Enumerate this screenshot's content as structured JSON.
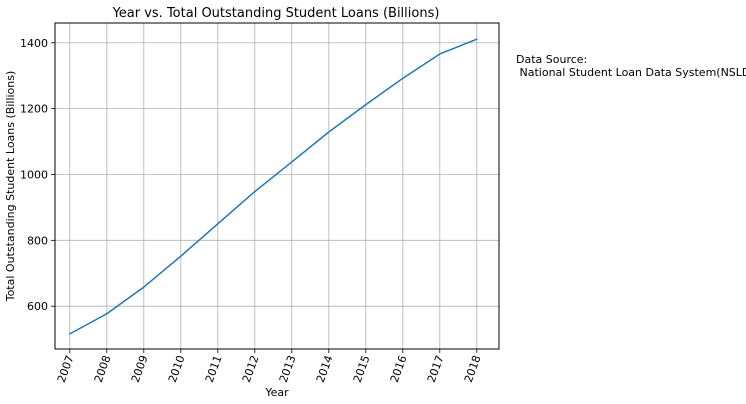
{
  "chart_data": {
    "type": "line",
    "title": "Year vs. Total Outstanding Student Loans (Billions)",
    "xlabel": "Year",
    "ylabel": "Total Outstanding Student Loans (Billions)",
    "x": [
      2007,
      2008,
      2009,
      2010,
      2011,
      2012,
      2013,
      2014,
      2015,
      2016,
      2017,
      2018
    ],
    "series": [
      {
        "values": [
          516,
          577,
          658,
          752,
          850,
          948,
          1038,
          1129,
          1212,
          1292,
          1366,
          1411
        ],
        "color": "#1f77b4"
      }
    ],
    "xlim": [
      2006.6,
      2018.6
    ],
    "ylim": [
      470,
      1460
    ],
    "yticks": [
      600,
      800,
      1000,
      1200,
      1400
    ],
    "grid": true,
    "x_tick_rotation": 70
  },
  "annotation": {
    "line1": "Data Source:",
    "line2": " National Student Loan Data System(NSLDS)"
  }
}
